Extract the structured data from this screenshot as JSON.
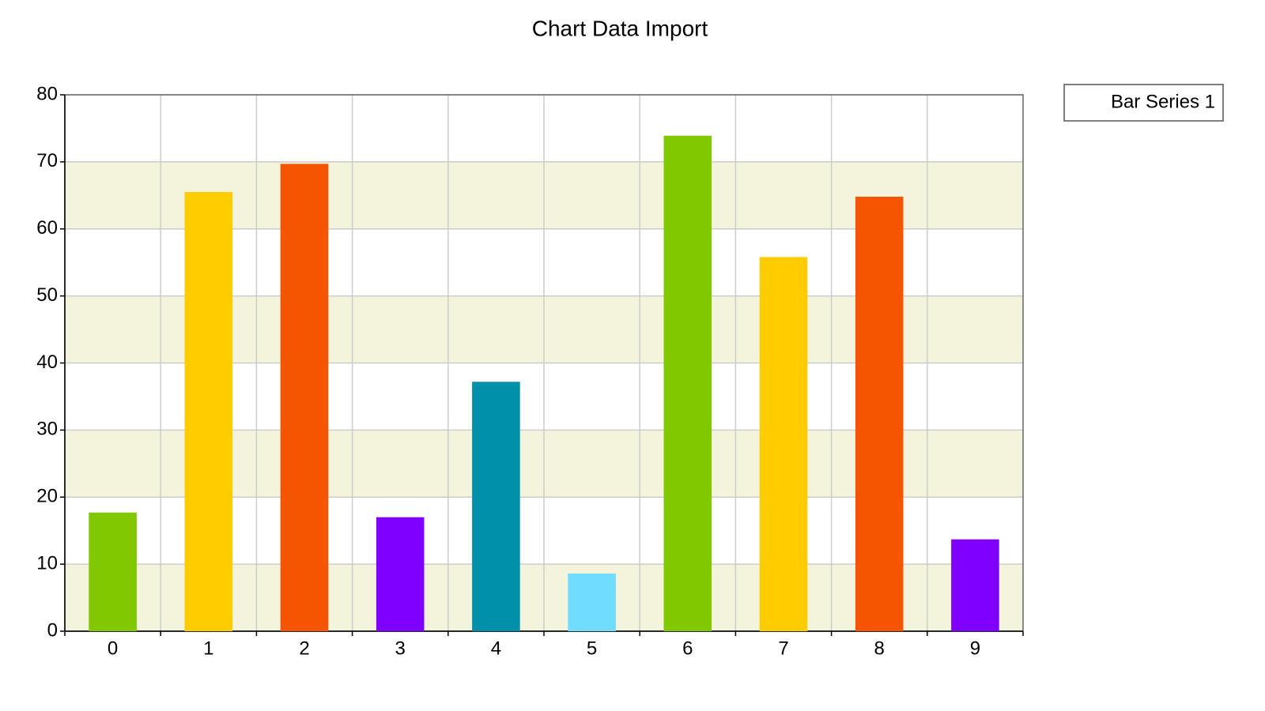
{
  "chart_data": {
    "type": "bar",
    "title": "Chart Data Import",
    "categories": [
      "0",
      "1",
      "2",
      "3",
      "4",
      "5",
      "6",
      "7",
      "8",
      "9"
    ],
    "series": [
      {
        "name": "Bar Series 1",
        "colors": [
          "#82c800",
          "#ffcc00",
          "#f55500",
          "#8000ff",
          "#0090aa",
          "#70dcff",
          "#82c800",
          "#ffcc00",
          "#f55500",
          "#8000ff"
        ],
        "values": [
          17.7,
          65.5,
          69.7,
          17.0,
          37.2,
          8.6,
          73.9,
          55.8,
          64.8,
          13.7
        ]
      }
    ],
    "ylim": [
      0,
      80
    ],
    "yticks": [
      0,
      10,
      20,
      30,
      40,
      50,
      60,
      70,
      80
    ],
    "grid": true,
    "band_color": "#f4f4dc",
    "legend": "top-right"
  }
}
